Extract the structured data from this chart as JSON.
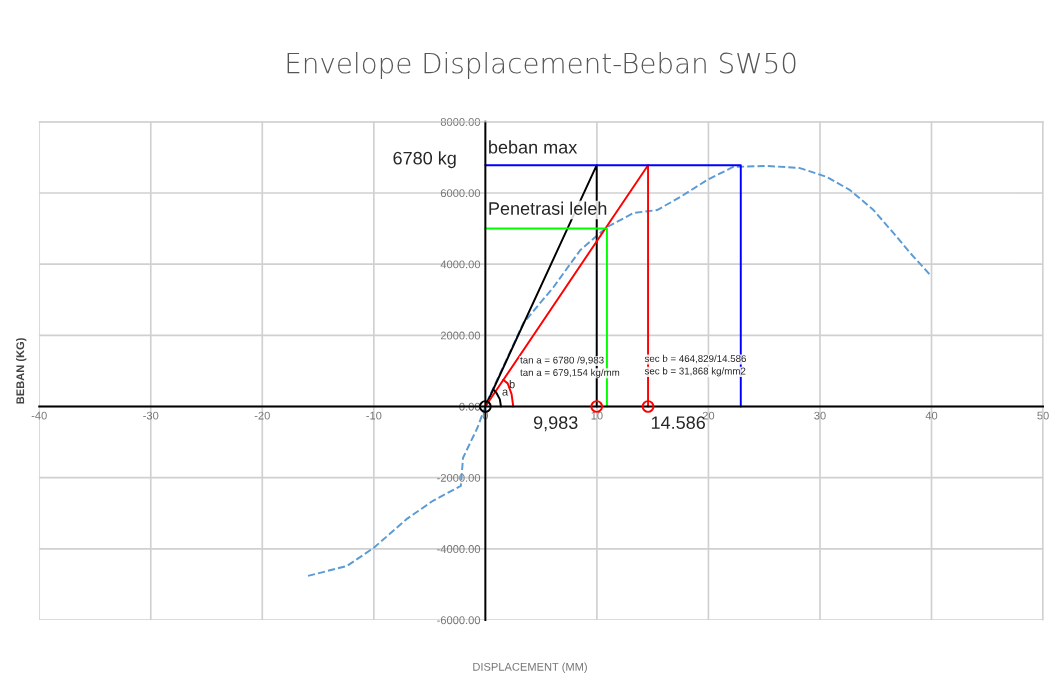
{
  "chart_data": {
    "type": "line",
    "title": "Envelope Displacement-Beban SW50",
    "xlabel": "DISPLACEMENT (MM)",
    "ylabel": "BEBAN (KG)",
    "xlim": [
      -40,
      50
    ],
    "ylim": [
      -6000,
      8000
    ],
    "xticks": [
      -40,
      -30,
      -20,
      -10,
      0,
      10,
      20,
      30,
      40,
      50
    ],
    "yticks": [
      {
        "value": -6000,
        "label": "-6000.00"
      },
      {
        "value": -4000,
        "label": "-4000.00"
      },
      {
        "value": -2000,
        "label": "-2000.00"
      },
      {
        "value": 0,
        "label": "0.00"
      },
      {
        "value": 2000,
        "label": "2000.00"
      },
      {
        "value": 4000,
        "label": "4000.00"
      },
      {
        "value": 6000,
        "label": "6000.00"
      },
      {
        "value": 8000,
        "label": "8000.00"
      }
    ],
    "grid": true,
    "line_style": "solid",
    "marker": "none",
    "series": [
      {
        "color": "#5b9bd5",
        "line_style": "dashed",
        "x": [
          -15.9,
          -12.4,
          -10.0,
          -7.0,
          -4.7,
          -2.2,
          -2.0,
          -0.7,
          -0.3,
          0,
          0.2,
          3.4,
          6.1,
          8.5,
          10.9,
          13.3,
          15.4,
          17.5,
          19.9,
          21.7,
          22.2,
          25.3,
          28.2,
          30.6,
          32.7,
          34.8,
          36.6,
          38.1,
          39.9
        ],
        "values": [
          -4760,
          -4480,
          -3970,
          -3150,
          -2650,
          -2230,
          -1440,
          -590,
          -250,
          0,
          170,
          2340,
          3350,
          4390,
          5040,
          5440,
          5520,
          5890,
          6370,
          6650,
          6730,
          6760,
          6700,
          6450,
          6080,
          5520,
          4870,
          4310,
          3690
        ]
      },
      {
        "color": "#000000",
        "x": [
          0,
          9.983,
          9.983
        ],
        "values": [
          0,
          6780,
          0
        ]
      },
      {
        "color": "#ff0000",
        "x": [
          0,
          14.586,
          14.586
        ],
        "values": [
          0,
          6780,
          0
        ]
      },
      {
        "color": "#0000ff",
        "x": [
          0,
          22.9,
          22.9
        ],
        "values": [
          6780,
          6780,
          0
        ]
      },
      {
        "color": "#00ff00",
        "x": [
          0,
          10.9,
          10.9
        ],
        "values": [
          5000,
          5000,
          0
        ]
      },
      {
        "color": "#000000",
        "x": [
          1.4,
          1.3,
          1.0,
          0.7
        ],
        "values": [
          0,
          200,
          380,
          480
        ]
      },
      {
        "color": "#ff0000",
        "x": [
          2.5,
          2.35,
          2.0,
          1.6
        ],
        "values": [
          0,
          350,
          650,
          750
        ]
      },
      {
        "type": "scatter",
        "marker": "circle",
        "color": "#ff0000",
        "x": [
          9.983,
          14.586
        ],
        "values": [
          0,
          0
        ]
      },
      {
        "type": "scatter",
        "marker": "circle",
        "color": "#000000",
        "x": [
          0
        ],
        "values": [
          0
        ]
      }
    ],
    "annotations": [
      "beban max",
      "6780 kg",
      "Penetrasi leleh",
      "tan a = 6780 /9,983",
      "tan a = 679,154 kg/mm",
      "sec b = 464,829/14.586",
      "sec b = 31,868 kg/mm2",
      "a",
      "b",
      "9,983",
      "14.586"
    ]
  }
}
